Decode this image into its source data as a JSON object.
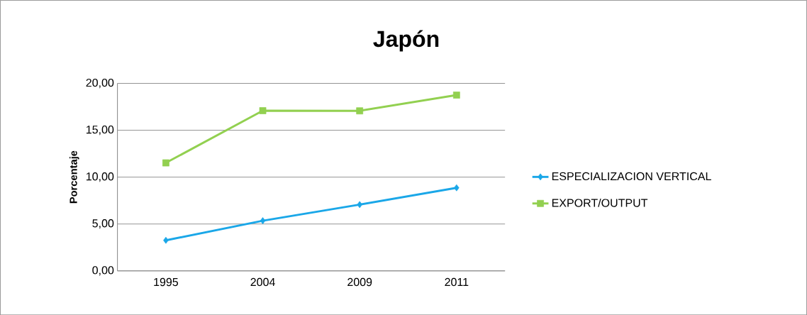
{
  "chart_data": {
    "type": "line",
    "title": "Japón",
    "ylabel": "Porcentaje",
    "categories": [
      "1995",
      "2004",
      "2009",
      "2011"
    ],
    "series": [
      {
        "name": "ESPECIALIZACION VERTICAL",
        "color": "#1aa7e8",
        "marker": "diamond",
        "values": [
          3.26,
          5.35,
          7.07,
          8.86
        ]
      },
      {
        "name": "EXPORT/OUTPUT",
        "color": "#92d050",
        "marker": "square",
        "values": [
          11.52,
          17.09,
          17.07,
          18.75
        ]
      }
    ],
    "ylim": [
      0,
      20
    ],
    "yticks": [
      {
        "value": 0,
        "label": "0,00"
      },
      {
        "value": 5,
        "label": "5,00"
      },
      {
        "value": 10,
        "label": "10,00"
      },
      {
        "value": 15,
        "label": "15,00"
      },
      {
        "value": 20,
        "label": "20,00"
      }
    ],
    "grid": "y",
    "legend": "right",
    "line_style": "solid"
  }
}
